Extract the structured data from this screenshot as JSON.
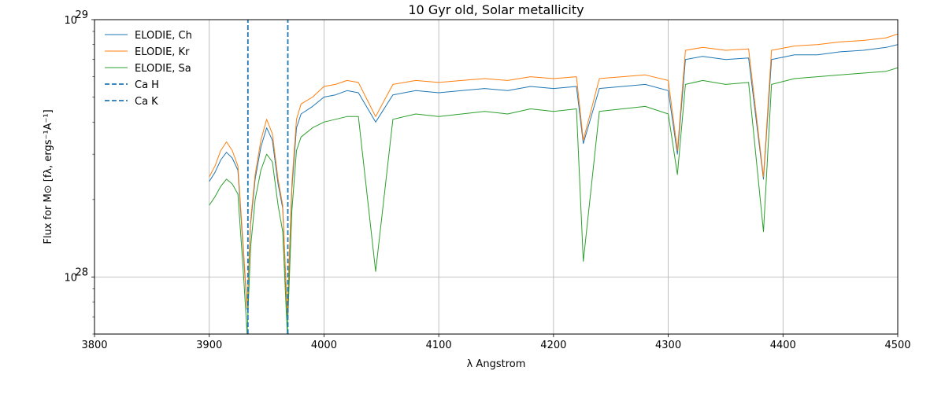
{
  "chart_data": {
    "type": "line",
    "title": "10 Gyr old, Solar metallicity",
    "xlabel": "λ Angstrom",
    "ylabel": "Flux for M⊙ [fλ, ergs⁻¹A⁻¹]",
    "xlim": [
      3800,
      4500
    ],
    "ylim": [
      6e+27,
      1e+29
    ],
    "yscale": "log",
    "grid": true,
    "legend_position": "top-left",
    "x_ticks": [
      3800,
      3900,
      4000,
      4100,
      4200,
      4300,
      4400,
      4500
    ],
    "y_ticks": [
      {
        "value": 1e+28,
        "base": "10",
        "exp": "28"
      },
      {
        "value": 1e+29,
        "base": "10",
        "exp": "29"
      }
    ],
    "series": [
      {
        "name": "ELODIE, Ch",
        "color": "#1f77b4",
        "x": [
          3900,
          3905,
          3910,
          3915,
          3920,
          3925,
          3930,
          3933,
          3936,
          3940,
          3945,
          3950,
          3955,
          3960,
          3964,
          3968,
          3972,
          3976,
          3980,
          3990,
          4000,
          4010,
          4020,
          4030,
          4045,
          4060,
          4080,
          4100,
          4120,
          4140,
          4160,
          4180,
          4200,
          4220,
          4226,
          4240,
          4260,
          4280,
          4300,
          4308,
          4315,
          4330,
          4350,
          4370,
          4383,
          4390,
          4410,
          4430,
          4450,
          4470,
          4490,
          4500
        ],
        "y": [
          2.35e+28,
          2.55e+28,
          2.85e+28,
          3.05e+28,
          2.9e+28,
          2.6e+28,
          1.2e+28,
          7.5e+27,
          1.6e+28,
          2.4e+28,
          3.2e+28,
          3.8e+28,
          3.4e+28,
          2.3e+28,
          1.85e+28,
          7e+27,
          2.2e+28,
          3.8e+28,
          4.3e+28,
          4.6e+28,
          5e+28,
          5.1e+28,
          5.3e+28,
          5.2e+28,
          4e+28,
          5.1e+28,
          5.3e+28,
          5.2e+28,
          5.3e+28,
          5.4e+28,
          5.3e+28,
          5.5e+28,
          5.4e+28,
          5.5e+28,
          3.3e+28,
          5.4e+28,
          5.5e+28,
          5.6e+28,
          5.3e+28,
          3e+28,
          7e+28,
          7.2e+28,
          7e+28,
          7.1e+28,
          2.4e+28,
          7e+28,
          7.3e+28,
          7.3e+28,
          7.5e+28,
          7.6e+28,
          7.8e+28,
          8e+28
        ]
      },
      {
        "name": "ELODIE, Kr",
        "color": "#ff7f0e",
        "x": [
          3900,
          3905,
          3910,
          3915,
          3920,
          3925,
          3930,
          3933,
          3936,
          3940,
          3945,
          3950,
          3955,
          3960,
          3964,
          3968,
          3972,
          3976,
          3980,
          3990,
          4000,
          4010,
          4020,
          4030,
          4045,
          4060,
          4080,
          4100,
          4120,
          4140,
          4160,
          4180,
          4200,
          4220,
          4226,
          4240,
          4260,
          4280,
          4300,
          4308,
          4315,
          4330,
          4350,
          4370,
          4383,
          4390,
          4410,
          4430,
          4450,
          4470,
          4490,
          4500
        ],
        "y": [
          2.45e+28,
          2.7e+28,
          3.1e+28,
          3.35e+28,
          3.1e+28,
          2.7e+28,
          1.25e+28,
          7.6e+27,
          1.65e+28,
          2.5e+28,
          3.4e+28,
          4.1e+28,
          3.6e+28,
          2.4e+28,
          1.9e+28,
          7.2e+27,
          2.3e+28,
          4.1e+28,
          4.7e+28,
          5e+28,
          5.5e+28,
          5.6e+28,
          5.8e+28,
          5.7e+28,
          4.2e+28,
          5.6e+28,
          5.8e+28,
          5.7e+28,
          5.8e+28,
          5.9e+28,
          5.8e+28,
          6e+28,
          5.9e+28,
          6e+28,
          3.4e+28,
          5.9e+28,
          6e+28,
          6.1e+28,
          5.8e+28,
          3.1e+28,
          7.6e+28,
          7.8e+28,
          7.6e+28,
          7.7e+28,
          2.45e+28,
          7.6e+28,
          7.9e+28,
          8e+28,
          8.2e+28,
          8.3e+28,
          8.5e+28,
          8.8e+28
        ]
      },
      {
        "name": "ELODIE, Sa",
        "color": "#2ca02c",
        "x": [
          3900,
          3905,
          3910,
          3915,
          3920,
          3925,
          3930,
          3933,
          3936,
          3940,
          3945,
          3950,
          3955,
          3960,
          3964,
          3968,
          3972,
          3976,
          3980,
          3990,
          4000,
          4010,
          4020,
          4030,
          4045,
          4060,
          4080,
          4100,
          4120,
          4140,
          4160,
          4180,
          4200,
          4220,
          4226,
          4240,
          4260,
          4280,
          4300,
          4308,
          4315,
          4330,
          4350,
          4370,
          4383,
          4390,
          4410,
          4430,
          4450,
          4470,
          4490,
          4500
        ],
        "y": [
          1.9e+28,
          2.05e+28,
          2.25e+28,
          2.4e+28,
          2.3e+28,
          2.1e+28,
          1e+28,
          6e+27,
          1.3e+28,
          2e+28,
          2.6e+28,
          3e+28,
          2.8e+28,
          1.9e+28,
          1.5e+28,
          6e+27,
          1.8e+28,
          3.1e+28,
          3.5e+28,
          3.8e+28,
          4e+28,
          4.1e+28,
          4.2e+28,
          4.2e+28,
          1.05e+28,
          4.1e+28,
          4.3e+28,
          4.2e+28,
          4.3e+28,
          4.4e+28,
          4.3e+28,
          4.5e+28,
          4.4e+28,
          4.5e+28,
          1.15e+28,
          4.4e+28,
          4.5e+28,
          4.6e+28,
          4.3e+28,
          2.5e+28,
          5.6e+28,
          5.8e+28,
          5.6e+28,
          5.7e+28,
          1.5e+28,
          5.6e+28,
          5.9e+28,
          6e+28,
          6.1e+28,
          6.2e+28,
          6.3e+28,
          6.5e+28
        ]
      },
      {
        "name": "Ca H",
        "color": "#1f77b4",
        "dashed": true,
        "x": [
          3933.7,
          3933.7
        ],
        "y": [
          6e+27,
          1e+29
        ]
      },
      {
        "name": "Ca K",
        "color": "#1f77b4",
        "dashed": true,
        "x": [
          3968.5,
          3968.5
        ],
        "y": [
          6e+27,
          1e+29
        ]
      }
    ]
  }
}
